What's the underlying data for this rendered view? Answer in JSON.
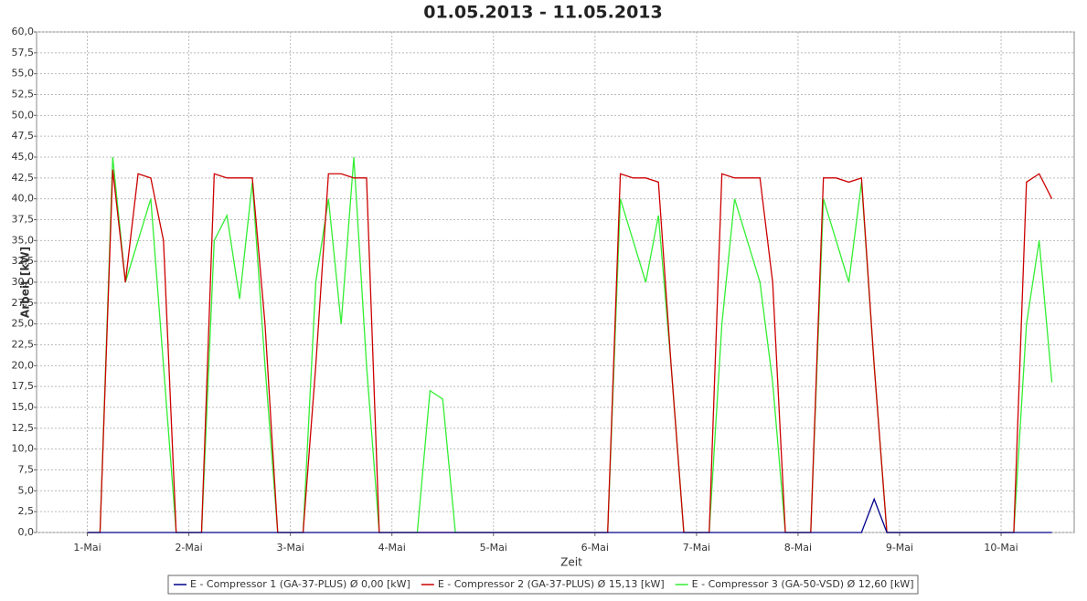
{
  "chart_data": {
    "type": "line",
    "title": "01.05.2013 - 11.05.2013",
    "y_label": "Arbeit [kW]",
    "x_label": "Zeit",
    "grid": true,
    "xlim": [
      -0.5,
      9.72
    ],
    "ylim": [
      0,
      60
    ],
    "xticks": [
      {
        "value": 0,
        "label": "1-Mai"
      },
      {
        "value": 1,
        "label": "2-Mai"
      },
      {
        "value": 2,
        "label": "3-Mai"
      },
      {
        "value": 3,
        "label": "4-Mai"
      },
      {
        "value": 4,
        "label": "5-Mai"
      },
      {
        "value": 5,
        "label": "6-Mai"
      },
      {
        "value": 6,
        "label": "7-Mai"
      },
      {
        "value": 7,
        "label": "8-Mai"
      },
      {
        "value": 8,
        "label": "9-Mai"
      },
      {
        "value": 9,
        "label": "10-Mai"
      }
    ],
    "yticks": [
      {
        "value": 0,
        "label": "0,0"
      },
      {
        "value": 2.5,
        "label": "2,5"
      },
      {
        "value": 5,
        "label": "5,0"
      },
      {
        "value": 7.5,
        "label": "7,5"
      },
      {
        "value": 10,
        "label": "10,0"
      },
      {
        "value": 12.5,
        "label": "12,5"
      },
      {
        "value": 15,
        "label": "15,0"
      },
      {
        "value": 17.5,
        "label": "17,5"
      },
      {
        "value": 20,
        "label": "20,0"
      },
      {
        "value": 22.5,
        "label": "22,5"
      },
      {
        "value": 25,
        "label": "25,0"
      },
      {
        "value": 27.5,
        "label": "27,5"
      },
      {
        "value": 30,
        "label": "30,0"
      },
      {
        "value": 32.5,
        "label": "32,5"
      },
      {
        "value": 35,
        "label": "35,0"
      },
      {
        "value": 37.5,
        "label": "37,5"
      },
      {
        "value": 40,
        "label": "40,0"
      },
      {
        "value": 42.5,
        "label": "42,5"
      },
      {
        "value": 45,
        "label": "45,0"
      },
      {
        "value": 47.5,
        "label": "47,5"
      },
      {
        "value": 50,
        "label": "50,0"
      },
      {
        "value": 52.5,
        "label": "52,5"
      },
      {
        "value": 55,
        "label": "55,0"
      },
      {
        "value": 57.5,
        "label": "57,5"
      },
      {
        "value": 60,
        "label": "60,0"
      }
    ],
    "x": [
      0,
      0.125,
      0.25,
      0.375,
      0.5,
      0.625,
      0.75,
      0.875,
      1,
      1.125,
      1.25,
      1.375,
      1.5,
      1.625,
      1.75,
      1.875,
      2,
      2.125,
      2.25,
      2.375,
      2.5,
      2.625,
      2.75,
      2.875,
      3,
      3.125,
      3.25,
      3.375,
      3.5,
      3.625,
      3.75,
      3.875,
      4,
      4.125,
      4.25,
      4.375,
      4.5,
      4.625,
      4.75,
      4.875,
      5,
      5.125,
      5.25,
      5.375,
      5.5,
      5.625,
      5.75,
      5.875,
      6,
      6.125,
      6.25,
      6.375,
      6.5,
      6.625,
      6.75,
      6.875,
      7,
      7.125,
      7.25,
      7.375,
      7.5,
      7.625,
      7.75,
      7.875,
      8,
      8.125,
      8.25,
      8.375,
      8.5,
      8.625,
      8.75,
      8.875,
      9,
      9.125,
      9.25,
      9.375,
      9.5
    ],
    "series": [
      {
        "name": "E - Compressor 3 (GA-50-VSD) Ø 12,60 [kW]",
        "color": "#33ee33",
        "values": [
          0,
          0,
          45,
          30,
          35,
          40,
          20,
          0,
          0,
          0,
          35,
          38,
          28,
          42,
          20,
          0,
          0,
          0,
          30,
          40,
          25,
          45,
          20,
          0,
          0,
          0,
          0,
          17,
          16,
          0,
          0,
          0,
          0,
          0,
          0,
          0,
          0,
          0,
          0,
          0,
          0,
          0,
          40,
          35,
          30,
          38,
          20,
          0,
          0,
          0,
          25,
          40,
          35,
          30,
          18,
          0,
          0,
          0,
          40,
          35,
          30,
          42,
          20,
          0,
          0,
          0,
          0,
          0,
          0,
          0,
          0,
          0,
          0,
          0,
          25,
          35,
          18
        ]
      },
      {
        "name": "E - Compressor 2 (GA-37-PLUS) Ø 15,13 [kW]",
        "color": "#cc0000",
        "values": [
          0,
          0,
          43.5,
          30,
          43,
          42.5,
          35,
          0,
          0,
          0,
          43,
          42.5,
          42.5,
          42.5,
          25,
          0,
          0,
          0,
          20,
          43,
          43,
          42.5,
          42.5,
          0,
          0,
          0,
          0,
          0,
          0,
          0,
          0,
          0,
          0,
          0,
          0,
          0,
          0,
          0,
          0,
          0,
          0,
          0,
          43,
          42.5,
          42.5,
          42,
          20,
          0,
          0,
          0,
          43,
          42.5,
          42.5,
          42.5,
          30,
          0,
          0,
          0,
          42.5,
          42.5,
          42,
          42.5,
          20,
          0,
          0,
          0,
          0,
          0,
          0,
          0,
          0,
          0,
          0,
          0,
          42,
          43,
          40
        ]
      },
      {
        "name": "E - Compressor 1 (GA-37-PLUS) Ø 0,00 [kW]",
        "color": "#00008b",
        "values": [
          0,
          0,
          0,
          0,
          0,
          0,
          0,
          0,
          0,
          0,
          0,
          0,
          0,
          0,
          0,
          0,
          0,
          0,
          0,
          0,
          0,
          0,
          0,
          0,
          0,
          0,
          0,
          0,
          0,
          0,
          0,
          0,
          0,
          0,
          0,
          0,
          0,
          0,
          0,
          0,
          0,
          0,
          0,
          0,
          0,
          0,
          0,
          0,
          0,
          0,
          0,
          0,
          0,
          0,
          0,
          0,
          0,
          0,
          0,
          0,
          0,
          0,
          4,
          0,
          0,
          0,
          0,
          0,
          0,
          0,
          0,
          0,
          0,
          0,
          0,
          0,
          0
        ]
      }
    ]
  }
}
